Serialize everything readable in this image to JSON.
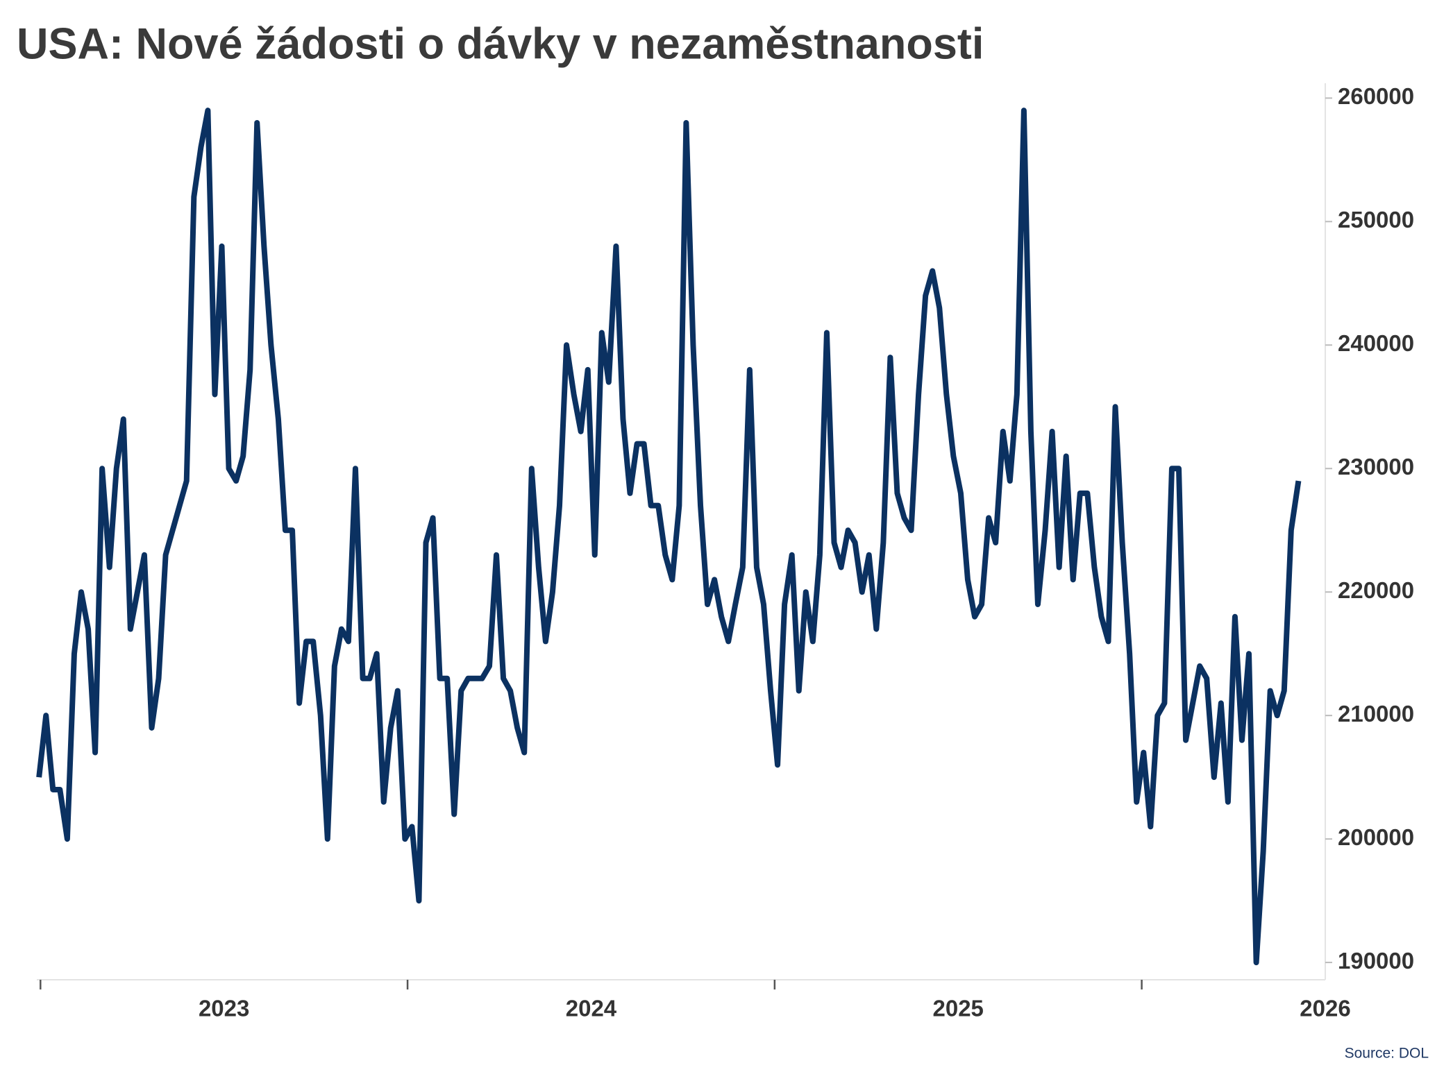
{
  "chart_data": {
    "type": "line",
    "title": "USA: Nové žádosti o dávky v nezaměstnanosti",
    "source": "Source: DOL",
    "x": [
      2022.496,
      2022.515,
      2022.534,
      2022.553,
      2022.573,
      2022.592,
      2022.611,
      2022.63,
      2022.649,
      2022.668,
      2022.688,
      2022.707,
      2022.726,
      2022.745,
      2022.764,
      2022.783,
      2022.803,
      2022.822,
      2022.841,
      2022.86,
      2022.879,
      2022.898,
      2022.918,
      2022.937,
      2022.956,
      2022.975,
      2022.994,
      2023.013,
      2023.033,
      2023.052,
      2023.071,
      2023.09,
      2023.109,
      2023.128,
      2023.148,
      2023.167,
      2023.186,
      2023.205,
      2023.224,
      2023.243,
      2023.263,
      2023.282,
      2023.301,
      2023.32,
      2023.339,
      2023.358,
      2023.378,
      2023.397,
      2023.416,
      2023.435,
      2023.454,
      2023.473,
      2023.493,
      2023.512,
      2023.531,
      2023.55,
      2023.569,
      2023.588,
      2023.608,
      2023.627,
      2023.646,
      2023.665,
      2023.684,
      2023.703,
      2023.723,
      2023.742,
      2023.761,
      2023.78,
      2023.799,
      2023.818,
      2023.838,
      2023.857,
      2023.876,
      2023.895,
      2023.914,
      2023.933,
      2023.953,
      2023.972,
      2023.991,
      2024.01,
      2024.029,
      2024.048,
      2024.068,
      2024.087,
      2024.106,
      2024.125,
      2024.144,
      2024.163,
      2024.183,
      2024.202,
      2024.221,
      2024.24,
      2024.259,
      2024.278,
      2024.298,
      2024.317,
      2024.336,
      2024.355,
      2024.374,
      2024.393,
      2024.413,
      2024.432,
      2024.451,
      2024.47,
      2024.489,
      2024.508,
      2024.527,
      2024.547,
      2024.566,
      2024.585,
      2024.604,
      2024.623,
      2024.642,
      2024.662,
      2024.681,
      2024.7,
      2024.719,
      2024.738,
      2024.757,
      2024.777,
      2024.796,
      2024.815,
      2024.834,
      2024.853,
      2024.872,
      2024.892,
      2024.911,
      2024.93,
      2024.949,
      2024.968,
      2024.987,
      2025.007,
      2025.026,
      2025.045,
      2025.064,
      2025.083,
      2025.102,
      2025.122,
      2025.141,
      2025.16,
      2025.179,
      2025.198,
      2025.217,
      2025.237,
      2025.256,
      2025.275,
      2025.294,
      2025.313,
      2025.332,
      2025.352,
      2025.371,
      2025.39,
      2025.409,
      2025.428,
      2025.447,
      2025.467,
      2025.486,
      2025.505,
      2025.524,
      2025.543,
      2025.562,
      2025.582,
      2025.601,
      2025.62,
      2025.639,
      2025.658,
      2025.677,
      2025.697,
      2025.716,
      2025.735,
      2025.754,
      2025.773,
      2025.792,
      2025.812,
      2025.831,
      2025.85,
      2025.869,
      2025.888,
      2025.907,
      2025.927
    ],
    "series": [
      {
        "color": "#0b3161",
        "values": [
          205000,
          210000,
          204000,
          204000,
          200000,
          215000,
          220000,
          217000,
          207000,
          230000,
          222000,
          230000,
          234000,
          217000,
          220000,
          223000,
          209000,
          213000,
          223000,
          225000,
          227000,
          229000,
          252000,
          256000,
          259000,
          236000,
          248000,
          230000,
          229000,
          231000,
          238000,
          258000,
          248000,
          240000,
          234000,
          225000,
          225000,
          211000,
          216000,
          216000,
          210000,
          200000,
          214000,
          217000,
          216000,
          230000,
          213000,
          213000,
          215000,
          203000,
          209000,
          212000,
          200000,
          201000,
          195000,
          224000,
          226000,
          213000,
          213000,
          202000,
          212000,
          213000,
          213000,
          213000,
          214000,
          223000,
          213000,
          212000,
          209000,
          207000,
          230000,
          222000,
          216000,
          220000,
          227000,
          240000,
          236000,
          233000,
          238000,
          223000,
          241000,
          237000,
          248000,
          234000,
          228000,
          232000,
          232000,
          227000,
          227000,
          223000,
          221000,
          227000,
          258000,
          240000,
          227000,
          219000,
          221000,
          218000,
          216000,
          219000,
          222000,
          238000,
          222000,
          219000,
          212000,
          206000,
          219000,
          223000,
          212000,
          220000,
          216000,
          223000,
          241000,
          224000,
          222000,
          225000,
          224000,
          220000,
          223000,
          217000,
          224000,
          239000,
          228000,
          226000,
          225000,
          236000,
          244000,
          246000,
          243000,
          236000,
          231000,
          228000,
          221000,
          218000,
          219000,
          226000,
          224000,
          233000,
          229000,
          236000,
          259000,
          233000,
          219000,
          225000,
          233000,
          222000,
          231000,
          221000,
          228000,
          228000,
          222000,
          218000,
          216000,
          235000,
          224000,
          215000,
          203000,
          207000,
          201000,
          210000,
          211000,
          230000,
          230000,
          208000,
          211000,
          214000,
          213000,
          205000,
          211000,
          203000,
          218000,
          208000,
          215000,
          190000,
          199000,
          212000,
          210000,
          212000,
          225000,
          229000
        ]
      }
    ],
    "xlim": [
      2022.49,
      2026.0
    ],
    "xticks": [
      2023,
      2024,
      2025,
      2026
    ],
    "xminorticks": [
      2022.5,
      2023.5,
      2024.5,
      2025.5
    ],
    "ylim": [
      188600,
      261200
    ],
    "yticks": [
      190000,
      200000,
      210000,
      220000,
      230000,
      240000,
      250000,
      260000
    ],
    "y_axis_side": "right",
    "grid": false
  }
}
